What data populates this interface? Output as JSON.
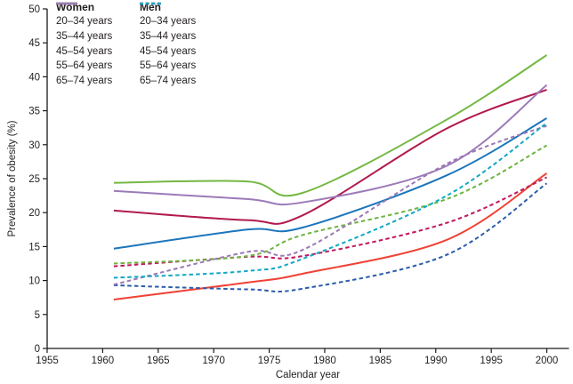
{
  "chart_data": {
    "type": "line",
    "title": "",
    "xlabel": "Calendar year",
    "ylabel": "Prevalence of obesity (%)",
    "xlim": [
      1955,
      2002
    ],
    "ylim": [
      0,
      50
    ],
    "xticks": [
      "1955",
      "1960",
      "1965",
      "1970",
      "1975",
      "1980",
      "1985",
      "1990",
      "1995",
      "2000"
    ],
    "xtick_values": [
      1955,
      1960,
      1965,
      1970,
      1975,
      1980,
      1985,
      1990,
      1995,
      2000
    ],
    "yticks": [
      "0",
      "5",
      "10",
      "15",
      "20",
      "25",
      "30",
      "35",
      "40",
      "45",
      "50"
    ],
    "ytick_values": [
      0,
      5,
      10,
      15,
      20,
      25,
      30,
      35,
      40,
      45,
      50
    ],
    "grid": false,
    "legend_position": "top-left",
    "legend_headers": [
      "Women",
      "Men"
    ],
    "axis_color": "#1a1a1a",
    "x": [
      1961,
      1973,
      1978,
      1991,
      2000
    ],
    "series": [
      {
        "group": "Women",
        "label": "20–34 years",
        "color": "#f04134",
        "dashed": false,
        "values": [
          7.2,
          9.7,
          11.0,
          16.0,
          25.8
        ]
      },
      {
        "group": "Women",
        "label": "35–44 years",
        "color": "#1b75bb",
        "dashed": false,
        "values": [
          14.7,
          17.5,
          17.8,
          25.5,
          33.9
        ]
      },
      {
        "group": "Women",
        "label": "45–54 years",
        "color": "#b11a4d",
        "dashed": false,
        "values": [
          20.3,
          18.9,
          19.6,
          32.4,
          38.1
        ]
      },
      {
        "group": "Women",
        "label": "55–64 years",
        "color": "#74b843",
        "dashed": false,
        "values": [
          24.4,
          24.6,
          22.9,
          33.7,
          43.2
        ]
      },
      {
        "group": "Women",
        "label": "65–74 years",
        "color": "#9c7ab8",
        "dashed": false,
        "values": [
          23.2,
          22.0,
          21.5,
          26.9,
          38.8
        ]
      },
      {
        "group": "Men",
        "label": "20–34 years",
        "color": "#2a5caa",
        "dashed": true,
        "values": [
          9.3,
          8.7,
          8.8,
          13.8,
          24.3
        ]
      },
      {
        "group": "Men",
        "label": "35–44 years",
        "color": "#c0175d",
        "dashed": true,
        "values": [
          12.1,
          13.5,
          13.6,
          18.5,
          25.2
        ]
      },
      {
        "group": "Men",
        "label": "45–54 years",
        "color": "#6cb33f",
        "dashed": true,
        "values": [
          12.5,
          13.6,
          16.7,
          22.0,
          29.9
        ]
      },
      {
        "group": "Men",
        "label": "55–64 years",
        "color": "#9a79b5",
        "dashed": true,
        "values": [
          9.4,
          14.2,
          14.5,
          27.2,
          32.8
        ]
      },
      {
        "group": "Men",
        "label": "65–74 years",
        "color": "#12a7c4",
        "dashed": true,
        "values": [
          10.4,
          11.4,
          13.2,
          22.5,
          33.2
        ]
      }
    ]
  }
}
